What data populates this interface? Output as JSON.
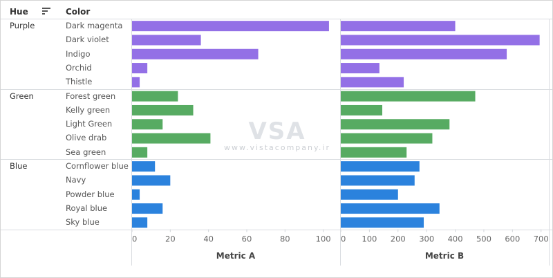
{
  "header": {
    "hue_label": "Hue",
    "color_label": "Color",
    "sort_icon": "sort-icon"
  },
  "watermark": {
    "logo_text": "VSA",
    "site": "www.vistacompany.ir"
  },
  "colors": {
    "Purple": "#9370e6",
    "Green": "#57ab62",
    "Blue": "#2b82dd"
  },
  "chart_data": {
    "type": "bar",
    "orientation": "horizontal",
    "groups": [
      {
        "hue": "Purple",
        "items": [
          {
            "color": "Dark magenta",
            "a": 103,
            "b": 400
          },
          {
            "color": "Dark violet",
            "a": 36,
            "b": 695
          },
          {
            "color": "Indigo",
            "a": 66,
            "b": 580
          },
          {
            "color": "Orchid",
            "a": 8,
            "b": 135
          },
          {
            "color": "Thistle",
            "a": 4,
            "b": 220
          }
        ]
      },
      {
        "hue": "Green",
        "items": [
          {
            "color": "Forest green",
            "a": 24,
            "b": 470
          },
          {
            "color": "Kelly green",
            "a": 32,
            "b": 145
          },
          {
            "color": "Light Green",
            "a": 16,
            "b": 380
          },
          {
            "color": "Olive drab",
            "a": 41,
            "b": 320
          },
          {
            "color": "Sea green",
            "a": 8,
            "b": 230
          }
        ]
      },
      {
        "hue": "Blue",
        "items": [
          {
            "color": "Cornflower blue",
            "a": 12,
            "b": 275
          },
          {
            "color": "Navy",
            "a": 20,
            "b": 258
          },
          {
            "color": "Powder blue",
            "a": 4,
            "b": 200
          },
          {
            "color": "Royal blue",
            "a": 16,
            "b": 345
          },
          {
            "color": "Sky blue",
            "a": 8,
            "b": 290
          }
        ]
      }
    ],
    "metric_a": {
      "label": "Metric A",
      "ticks": [
        0,
        20,
        40,
        60,
        80,
        100
      ],
      "xlim": [
        0,
        107
      ]
    },
    "metric_b": {
      "label": "Metric B",
      "ticks": [
        0,
        100,
        200,
        300,
        400,
        500,
        600,
        700
      ],
      "xlim": [
        0,
        720
      ]
    },
    "grid": false
  }
}
